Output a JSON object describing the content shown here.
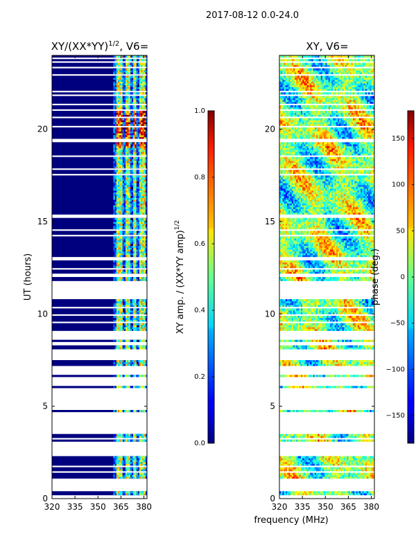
{
  "figure_title": "2017-08-12 0.0-24.0",
  "x_axis_label": "frequency (MHz)",
  "colors": {
    "nan_rows": "#ffffff",
    "background": "#ffffff"
  },
  "chart_data": [
    {
      "type": "heatmap",
      "id": "amp",
      "title_main": "XY/(XX*YY)",
      "title_sup": "1/2",
      "title_tail": ", V6=",
      "xlabel": "",
      "ylabel": "UT (hours)",
      "xlim": [
        320,
        382
      ],
      "ylim": [
        0,
        24
      ],
      "x_ticks": [
        320,
        335,
        350,
        365,
        380
      ],
      "y_ticks": [
        0,
        5,
        10,
        15,
        20
      ],
      "colormap": "jet",
      "colorbar": {
        "label_main": "XY amp. / (XX*YY amp)",
        "label_sup": "1/2",
        "range": [
          0.0,
          1.0
        ],
        "tick_values": [
          0.0,
          0.2,
          0.4,
          0.6,
          0.8,
          1.0
        ],
        "tick_labels": [
          "0.0",
          "0.2",
          "0.4",
          "0.6",
          "0.8",
          "1.0"
        ]
      },
      "description": "normalized cross-correlation amplitude; mostly ~0 below 360 MHz, bright channels 362-382 MHz",
      "bright_bands_mhz": [
        [
          362,
          366
        ],
        [
          368,
          371
        ],
        [
          373,
          375
        ],
        [
          377,
          381
        ]
      ]
    },
    {
      "type": "heatmap",
      "id": "phase",
      "title_main": "XY, V6=",
      "xlabel": "",
      "ylabel": "",
      "xlim": [
        320,
        382
      ],
      "ylim": [
        0,
        24
      ],
      "x_ticks": [
        320,
        335,
        350,
        365,
        380
      ],
      "y_ticks": [
        0,
        5,
        10,
        15,
        20
      ],
      "colormap": "jet",
      "colorbar": {
        "label_main": "phase (deg.)",
        "range": [
          -180,
          180
        ],
        "tick_values": [
          -150,
          -100,
          -50,
          0,
          50,
          100,
          150
        ],
        "tick_labels": [
          "−150",
          "−100",
          "−50",
          "0",
          "50",
          "100",
          "150"
        ]
      },
      "description": "XY phase, noisy across full band"
    }
  ],
  "data_segments_ut_hours": [
    [
      0.25,
      0.4
    ],
    [
      1.1,
      1.4
    ],
    [
      1.55,
      1.7
    ],
    [
      1.8,
      2.3
    ],
    [
      3.1,
      3.2
    ],
    [
      3.35,
      3.45
    ],
    [
      3.5,
      3.55
    ],
    [
      4.7,
      4.8
    ],
    [
      6.05,
      6.1
    ],
    [
      6.65,
      6.7
    ],
    [
      7.2,
      7.5
    ],
    [
      8.1,
      8.3
    ],
    [
      8.5,
      8.6
    ],
    [
      9.1,
      9.5
    ],
    [
      9.65,
      9.95
    ],
    [
      10.05,
      10.3
    ],
    [
      10.45,
      10.8
    ],
    [
      11.8,
      12.0
    ],
    [
      12.2,
      12.4
    ],
    [
      12.55,
      12.95
    ],
    [
      13.15,
      13.3
    ],
    [
      13.35,
      14.25
    ],
    [
      14.35,
      14.5
    ],
    [
      14.6,
      14.7
    ],
    [
      14.75,
      15.2
    ],
    [
      15.35,
      16.4
    ],
    [
      16.45,
      17.5
    ],
    [
      17.6,
      17.8
    ],
    [
      17.9,
      18.5
    ],
    [
      18.6,
      19.3
    ],
    [
      19.5,
      20.1
    ],
    [
      20.2,
      20.6
    ],
    [
      20.7,
      21.0
    ],
    [
      21.1,
      21.3
    ],
    [
      21.45,
      21.8
    ],
    [
      21.9,
      22.0
    ],
    [
      22.1,
      22.9
    ],
    [
      23.05,
      23.3
    ],
    [
      23.45,
      23.55
    ],
    [
      23.7,
      23.8
    ],
    [
      23.9,
      24.0
    ]
  ]
}
